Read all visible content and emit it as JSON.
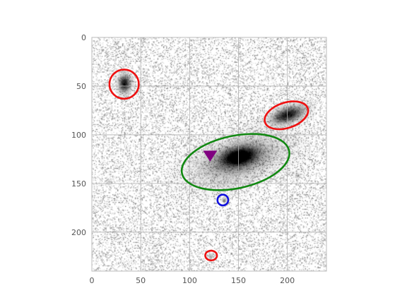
{
  "chart_data": {
    "type": "image",
    "title": "",
    "xlabel": "",
    "ylabel": "",
    "xlim": [
      0,
      240
    ],
    "ylim": [
      240,
      0
    ],
    "grid": true,
    "x_ticks": [
      0,
      50,
      100,
      150,
      200
    ],
    "y_ticks": [
      0,
      50,
      100,
      150,
      200
    ],
    "x_tick_labels": [
      "0",
      "50",
      "100",
      "150",
      "200"
    ],
    "y_tick_labels": [
      "0",
      "50",
      "100",
      "150",
      "200"
    ],
    "sources": [
      {
        "name": "galaxy-upper-left",
        "x": 33,
        "y": 47,
        "sx": 4,
        "sy": 6,
        "angle": 0,
        "peak": 0.95
      },
      {
        "name": "galaxy-upper-right",
        "x": 200,
        "y": 79,
        "sx": 11,
        "sy": 5,
        "angle": -18,
        "peak": 0.95
      },
      {
        "name": "galaxy-center-core",
        "x": 150,
        "y": 122,
        "sx": 12,
        "sy": 6,
        "angle": -12,
        "peak": 0.95
      },
      {
        "name": "galaxy-center-halo",
        "x": 150,
        "y": 125,
        "sx": 28,
        "sy": 13,
        "angle": -18,
        "peak": 0.45
      },
      {
        "name": "point-source-small",
        "x": 135,
        "y": 167,
        "sx": 1.3,
        "sy": 1.3,
        "angle": 0,
        "peak": 0.55
      },
      {
        "name": "faint-source-bottom",
        "x": 122,
        "y": 224,
        "sx": 2,
        "sy": 1.5,
        "angle": 0,
        "peak": 0.3
      },
      {
        "name": "faint-source-left",
        "x": 17,
        "y": 148,
        "sx": 2,
        "sy": 2,
        "angle": 0,
        "peak": 0.2
      },
      {
        "name": "faint-source-right",
        "x": 210,
        "y": 141,
        "sx": 2,
        "sy": 2,
        "angle": 0,
        "peak": 0.2
      },
      {
        "name": "faint-source-top",
        "x": 34,
        "y": 17,
        "sx": 1.5,
        "sy": 1.5,
        "angle": 0,
        "peak": 0.15
      }
    ],
    "ellipses": [
      {
        "name": "ellipse-upper-left",
        "x": 33,
        "y": 48,
        "rx": 15,
        "ry": 15,
        "angle": 0,
        "color": "#ee1111"
      },
      {
        "name": "ellipse-upper-right",
        "x": 199,
        "y": 80,
        "rx": 23,
        "ry": 13,
        "angle": -18,
        "color": "#ee1111"
      },
      {
        "name": "ellipse-center",
        "x": 147,
        "y": 128,
        "rx": 56,
        "ry": 27,
        "angle": -12,
        "color": "#118811"
      },
      {
        "name": "ellipse-point-source",
        "x": 134,
        "y": 167,
        "rx": 5.5,
        "ry": 5.5,
        "angle": 0,
        "color": "#1111dd"
      },
      {
        "name": "ellipse-bottom",
        "x": 122,
        "y": 224,
        "rx": 6,
        "ry": 5,
        "angle": 0,
        "color": "#ee1111"
      }
    ],
    "markers": [
      {
        "name": "triangle-marker",
        "x": 121,
        "y": 121,
        "shape": "triangle-down",
        "color": "#800080"
      }
    ],
    "colormap": "gray_r"
  }
}
